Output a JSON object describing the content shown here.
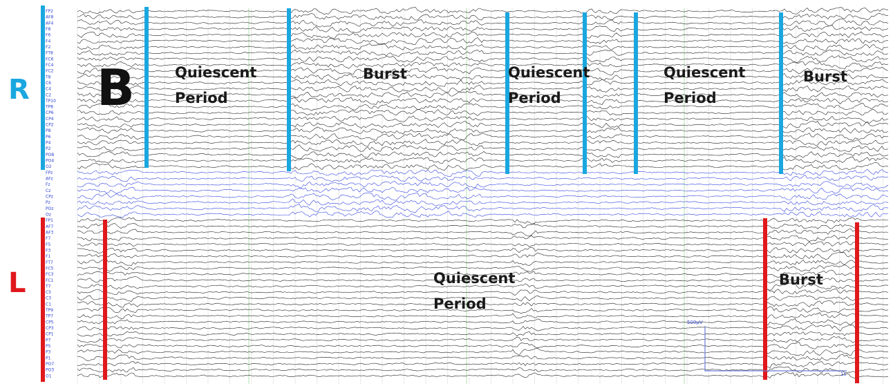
{
  "figure_label": "B",
  "hemispheres": {
    "right": "R",
    "left": "L"
  },
  "channels": {
    "right": [
      "FP2",
      "AF8",
      "AF4",
      "F8",
      "F6",
      "F4",
      "F2",
      "FT8",
      "FC6",
      "FC4",
      "FC2",
      "T8",
      "C6",
      "C4",
      "C2",
      "TP10",
      "TP8",
      "CP6",
      "CP4",
      "CP2",
      "P8",
      "P6",
      "P4",
      "P2",
      "PO8",
      "PO4",
      "O2"
    ],
    "midline": [
      "FPz",
      "AFz",
      "Fz",
      "Cz",
      "CPz",
      "Pz",
      "POz",
      "Oz"
    ],
    "left": [
      "FP1",
      "AF7",
      "AF3",
      "F7",
      "F5",
      "F3",
      "F1",
      "FT7",
      "FC5",
      "FC3",
      "FC1",
      "T7",
      "C5",
      "C3",
      "C1",
      "TP9",
      "TP7",
      "CP5",
      "CP3",
      "CP1",
      "P7",
      "P5",
      "P3",
      "P1",
      "PO7",
      "PO3",
      "O1"
    ]
  },
  "annotations": [
    {
      "lines": [
        "Quiescent",
        "Period"
      ]
    },
    {
      "lines": [
        "Burst"
      ]
    },
    {
      "lines": [
        "Quiescent",
        "Period"
      ]
    },
    {
      "lines": [
        "Quiescent",
        "Period"
      ]
    },
    {
      "lines": [
        "Burst"
      ]
    },
    {
      "lines": [
        "Quiescent",
        "Period"
      ]
    },
    {
      "lines": [
        "Burst"
      ]
    }
  ],
  "scale": {
    "amplitude": "500µV",
    "time": "1s"
  }
}
